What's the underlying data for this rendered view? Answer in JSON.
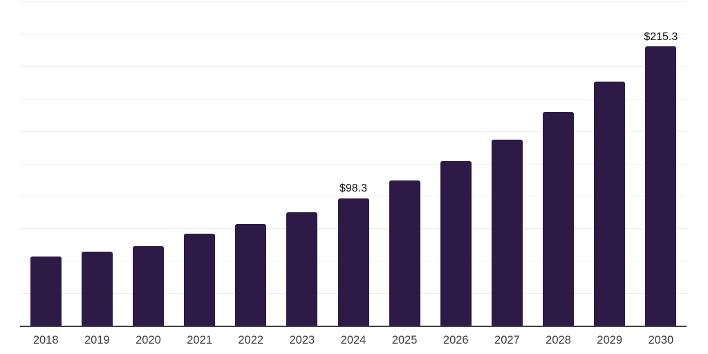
{
  "chart_data": {
    "type": "bar",
    "title": "",
    "xlabel": "",
    "ylabel": "",
    "categories": [
      "2018",
      "2019",
      "2020",
      "2021",
      "2022",
      "2023",
      "2024",
      "2025",
      "2026",
      "2027",
      "2028",
      "2029",
      "2030"
    ],
    "values": [
      53.5,
      57.0,
      61.3,
      70.7,
      78.2,
      87.6,
      98.3,
      112.1,
      127.0,
      143.6,
      164.6,
      188.0,
      215.3
    ],
    "data_labels": [
      {
        "category": "2024",
        "text": "$98.3"
      },
      {
        "category": "2030",
        "text": "$215.3"
      }
    ],
    "ylim": [
      0,
      250
    ],
    "gridline_interval": 25,
    "grid": "horizontal",
    "legend": "none",
    "colors": {
      "bar": "#2e1a47",
      "grid": "#efefef",
      "axis": "#424242",
      "tick_label": "#3d3d3d",
      "data_label": "#111111",
      "background": "#ffffff"
    }
  }
}
